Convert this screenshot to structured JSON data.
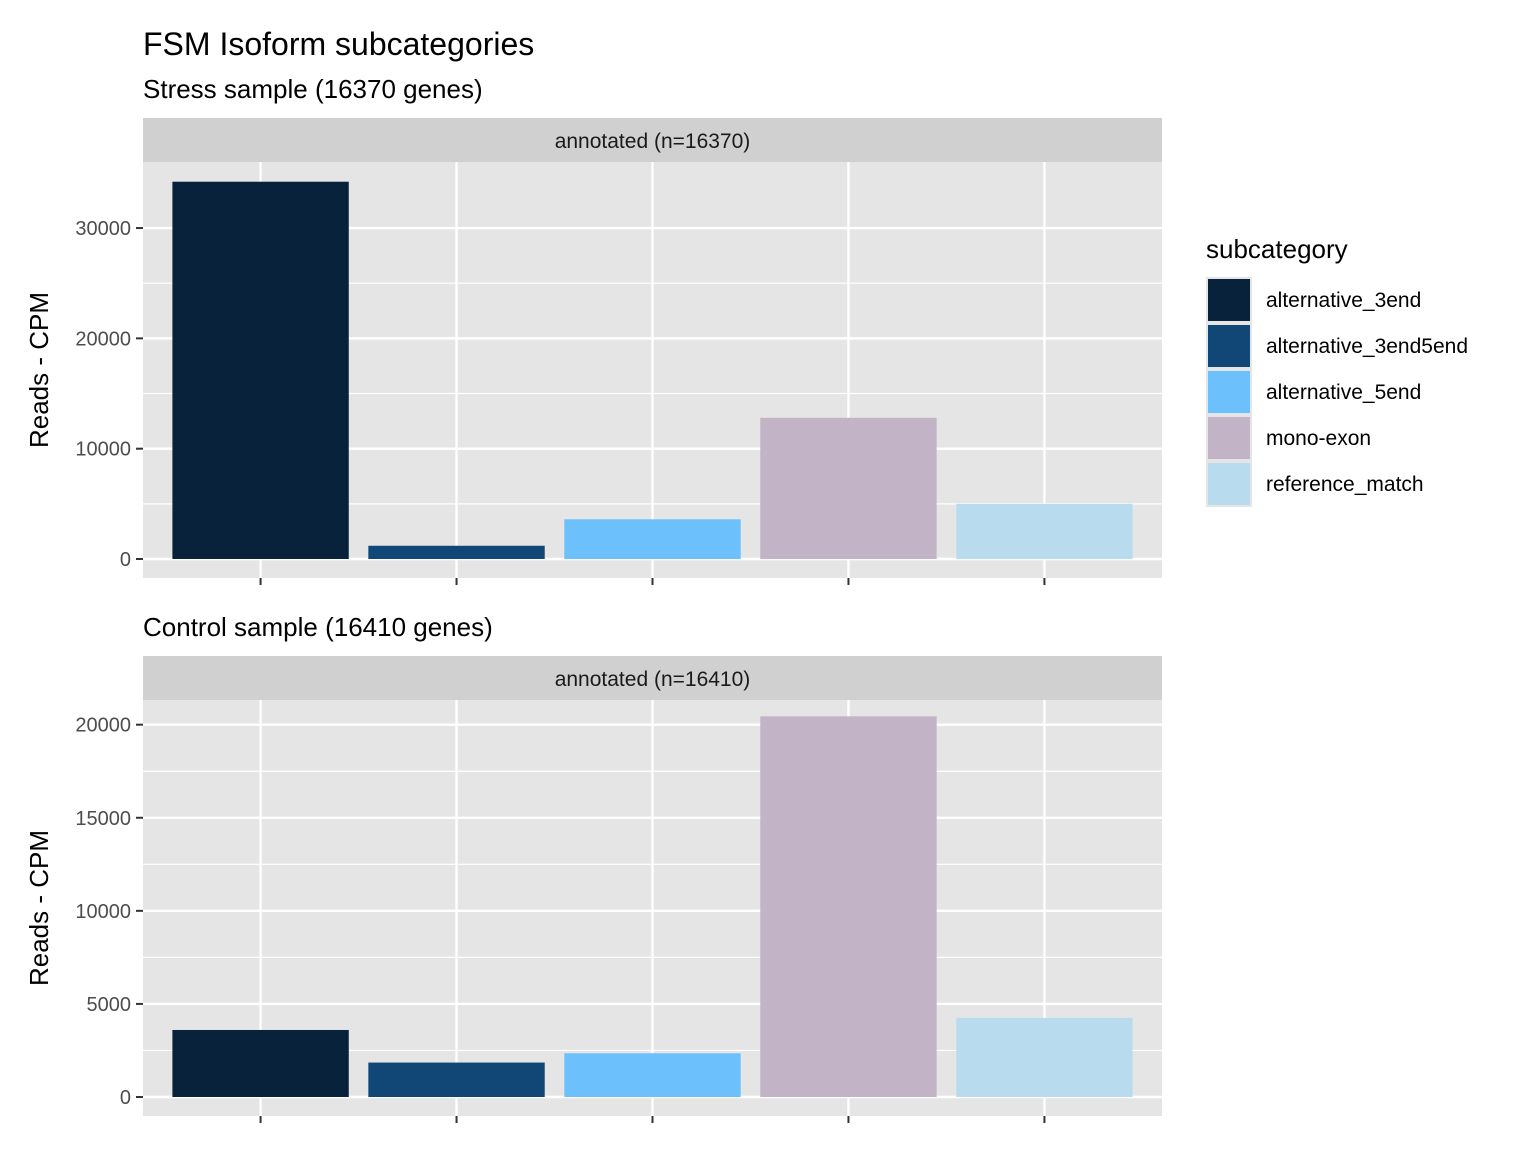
{
  "title": "FSM Isoform subcategories",
  "colors": {
    "panel_bg": "#e5e5e5",
    "strip_bg": "#d0d0d0",
    "grid": "#ffffff",
    "tick": "#333333"
  },
  "legend": {
    "title": "subcategory",
    "position": "right"
  },
  "chart_data": [
    {
      "type": "bar",
      "subtitle": "Stress sample (16370 genes)",
      "facet_label": "annotated (n=16370)",
      "ylabel": "Reads - CPM",
      "xlabel": "",
      "ylim": [
        0,
        34900
      ],
      "yticks": [
        0,
        10000,
        20000,
        30000
      ],
      "yticks_labels": [
        "0",
        "10000",
        "20000",
        "30000"
      ],
      "categories": [
        "alternative_3end",
        "alternative_3end5end",
        "alternative_5end",
        "mono-exon",
        "reference_match"
      ],
      "values": [
        34200,
        1200,
        3600,
        12800,
        5000
      ],
      "colors": [
        "#08223b",
        "#114776",
        "#6cc1fd",
        "#c2b3c7",
        "#b8dbee"
      ],
      "grid": true
    },
    {
      "type": "bar",
      "subtitle": "Control sample (16410 genes)",
      "facet_label": "annotated (n=16410)",
      "ylabel": "Reads - CPM",
      "xlabel": "",
      "ylim": [
        0,
        20950
      ],
      "yticks": [
        0,
        5000,
        10000,
        15000,
        20000
      ],
      "yticks_labels": [
        "0",
        "5000",
        "10000",
        "15000",
        "20000"
      ],
      "categories": [
        "alternative_3end",
        "alternative_3end5end",
        "alternative_5end",
        "mono-exon",
        "reference_match"
      ],
      "values": [
        3600,
        1850,
        2350,
        20450,
        4250
      ],
      "colors": [
        "#08223b",
        "#114776",
        "#6cc1fd",
        "#c2b3c7",
        "#b8dbee"
      ],
      "grid": true
    }
  ]
}
